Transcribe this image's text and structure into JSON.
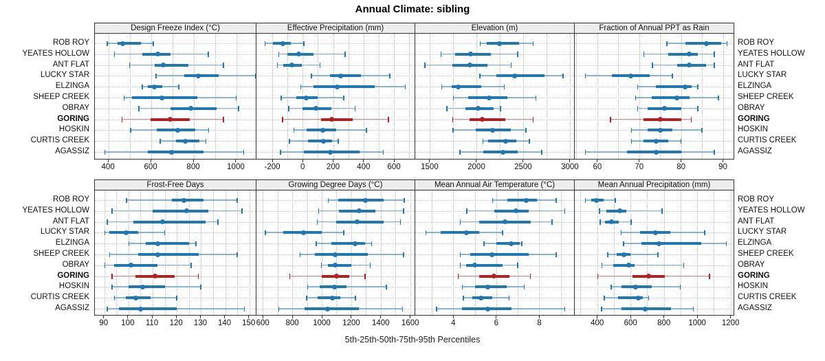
{
  "chart_data": {
    "type": "dotplot-percentile-trellis",
    "title": "Annual Climate: sibling",
    "xlabel": "5th-25th-50th-75th-95th Percentiles",
    "percentile_labels": [
      "5th",
      "25th",
      "50th",
      "75th",
      "95th"
    ],
    "legend_position": "none",
    "grid": "dotted",
    "sites_top_to_bottom": [
      "ROB ROY",
      "YEATES HOLLOW",
      "ANT FLAT",
      "LUCKY STAR",
      "ELZINGA",
      "SHEEP CREEK",
      "OBRAY",
      "GORING",
      "HOSKIN",
      "CURTIS CREEK",
      "AGASSIZ"
    ],
    "highlight_site": "GORING",
    "colors": {
      "series": "#1f77b4",
      "highlight": "#b22222",
      "strip_bg": "#ededed",
      "gridline": "#c0c0c0",
      "border": "#333333"
    },
    "panels": [
      {
        "label": "Design Freeze Index (°C)",
        "xlim": [
          335,
          1097
        ],
        "ticks": [
          400,
          600,
          800,
          1000
        ],
        "grid_step": 100,
        "values": {
          "ROB ROY": [
            390,
            440,
            465,
            550,
            610
          ],
          "YEATES HOLLOW": [
            425,
            558,
            630,
            690,
            868
          ],
          "ANT FLAT": [
            495,
            615,
            655,
            775,
            940
          ],
          "LUCKY STAR": [
            620,
            755,
            820,
            915,
            1090
          ],
          "ELZINGA": [
            555,
            585,
            615,
            650,
            730
          ],
          "SHEEP CREEK": [
            470,
            510,
            650,
            815,
            1000
          ],
          "OBRAY": [
            540,
            690,
            785,
            905,
            1010
          ],
          "GORING": [
            460,
            595,
            690,
            780,
            940
          ],
          "HOSKIN": [
            500,
            625,
            725,
            805,
            870
          ],
          "CURTIS CREEK": [
            640,
            715,
            760,
            825,
            857
          ],
          "AGASSIZ": [
            380,
            585,
            695,
            845,
            1035
          ]
        }
      },
      {
        "label": "Effective Precipitation (mm)",
        "xlim": [
          -304,
          740
        ],
        "ticks": [
          -200,
          0,
          200,
          400,
          600
        ],
        "grid_step": 100,
        "values": {
          "ROB ROY": [
            -250,
            -195,
            -130,
            -80,
            10
          ],
          "YEATES HOLLOW": [
            -160,
            -100,
            -25,
            70,
            280
          ],
          "ANT FLAT": [
            -170,
            -130,
            -70,
            -5,
            115
          ],
          "LUCKY STAR": [
            55,
            180,
            250,
            385,
            575
          ],
          "ELZINGA": [
            -15,
            70,
            225,
            475,
            675
          ],
          "SHEEP CREEK": [
            -145,
            -40,
            25,
            100,
            270
          ],
          "OBRAY": [
            -95,
            0,
            85,
            190,
            345
          ],
          "GORING": [
            -135,
            120,
            190,
            330,
            565
          ],
          "HOSKIN": [
            -60,
            25,
            130,
            220,
            420
          ],
          "CURTIS CREEK": [
            -90,
            35,
            135,
            195,
            235
          ],
          "AGASSIZ": [
            -150,
            10,
            180,
            375,
            530
          ]
        }
      },
      {
        "label": "Elevation (m)",
        "xlim": [
          1346,
          3052
        ],
        "ticks": [
          1500,
          2000,
          2500,
          3000
        ],
        "grid_step": 250,
        "values": {
          "ROB ROY": [
            2035,
            2110,
            2245,
            2460,
            2610
          ],
          "YEATES HOLLOW": [
            1615,
            1770,
            1940,
            2155,
            2445
          ],
          "ANT FLAT": [
            1445,
            1740,
            1930,
            2120,
            2375
          ],
          "LUCKY STAR": [
            2030,
            2215,
            2405,
            2725,
            2930
          ],
          "ELZINGA": [
            1625,
            1735,
            1805,
            2050,
            2300
          ],
          "SHEEP CREEK": [
            1750,
            1915,
            2135,
            2335,
            2640
          ],
          "OBRAY": [
            1680,
            1880,
            2020,
            2185,
            2260
          ],
          "GORING": [
            1740,
            1930,
            2060,
            2310,
            2610
          ],
          "HOSKIN": [
            1745,
            1990,
            2170,
            2370,
            2530
          ],
          "CURTIS CREEK": [
            2065,
            2125,
            2310,
            2430,
            2570
          ],
          "AGASSIZ": [
            1820,
            2075,
            2285,
            2445,
            2700
          ]
        }
      },
      {
        "label": "Fraction of Annual PPT as Rain",
        "xlim": [
          54.6,
          92.7
        ],
        "ticks": [
          60,
          70,
          80,
          90
        ],
        "grid_step": 5,
        "values": {
          "ROB ROY": [
            76.5,
            81,
            86,
            89.5,
            91
          ],
          "YEATES HOLLOW": [
            71,
            77,
            82,
            84,
            88
          ],
          "ANT FLAT": [
            73,
            79,
            82,
            86,
            88
          ],
          "LUCKY STAR": [
            57,
            63.5,
            68,
            72.5,
            78
          ],
          "ELZINGA": [
            69.5,
            74,
            81,
            82.5,
            84
          ],
          "SHEEP CREEK": [
            69,
            73,
            79,
            82,
            89
          ],
          "OBRAY": [
            69.5,
            72,
            76,
            80,
            84
          ],
          "GORING": [
            63,
            71,
            75,
            80,
            82.5
          ],
          "HOSKIN": [
            68,
            72,
            75,
            78,
            85
          ],
          "CURTIS CREEK": [
            68,
            71,
            74,
            77,
            80
          ],
          "AGASSIZ": [
            57,
            67,
            74,
            80,
            88
          ]
        }
      },
      {
        "label": "Frost-Free Days",
        "xlim": [
          86.1,
          153.2
        ],
        "ticks": [
          90,
          100,
          110,
          120,
          130,
          140,
          150
        ],
        "grid_step": 5,
        "values": {
          "ROB ROY": [
            99,
            118,
            123,
            131,
            145
          ],
          "YEATES HOLLOW": [
            93,
            110,
            124,
            133,
            147
          ],
          "ANT FLAT": [
            91,
            102,
            114,
            132,
            137
          ],
          "LUCKY STAR": [
            90,
            92,
            99,
            104,
            115
          ],
          "ELZINGA": [
            100,
            107,
            112,
            125,
            128
          ],
          "SHEEP CREEK": [
            92,
            104,
            112,
            129,
            145
          ],
          "OBRAY": [
            90,
            94,
            101,
            112,
            126
          ],
          "GORING": [
            93,
            103,
            111,
            119,
            129
          ],
          "HOSKIN": [
            93,
            100,
            106,
            115,
            130
          ],
          "CURTIS CREEK": [
            94,
            99,
            103,
            109,
            120
          ],
          "AGASSIZ": [
            91,
            96,
            105,
            120,
            148
          ]
        }
      },
      {
        "label": "Growing Degree Days (°C)",
        "xlim": [
          557,
          1634
        ],
        "ticks": [
          600,
          800,
          1000,
          1200,
          1400,
          1600
        ],
        "grid_step": 100,
        "values": {
          "ROB ROY": [
            1040,
            1110,
            1295,
            1420,
            1560
          ],
          "YEATES HOLLOW": [
            975,
            1115,
            1255,
            1365,
            1555
          ],
          "ANT FLAT": [
            965,
            1100,
            1240,
            1420,
            1535
          ],
          "LUCKY STAR": [
            615,
            740,
            875,
            1000,
            1150
          ],
          "ELZINGA": [
            960,
            1065,
            1225,
            1295,
            1340
          ],
          "SHEEP CREEK": [
            850,
            955,
            1090,
            1310,
            1555
          ],
          "OBRAY": [
            995,
            1040,
            1090,
            1200,
            1330
          ],
          "GORING": [
            780,
            1000,
            1100,
            1185,
            1295
          ],
          "HOSKIN": [
            900,
            985,
            1085,
            1170,
            1440
          ],
          "CURTIS CREEK": [
            895,
            970,
            1070,
            1125,
            1230
          ],
          "AGASSIZ": [
            705,
            885,
            1040,
            1250,
            1550
          ]
        }
      },
      {
        "label": "Mean Annual Air Temperature (°C)",
        "xlim": [
          2.23,
          9.65
        ],
        "ticks": [
          4,
          6,
          8
        ],
        "grid_step": 1,
        "values": {
          "ROB ROY": [
            5.8,
            6.5,
            7.4,
            7.9,
            8.8
          ],
          "YEATES HOLLOW": [
            4.6,
            5.9,
            6.9,
            7.5,
            9.2
          ],
          "ANT FLAT": [
            4.3,
            5.2,
            6.4,
            7.6,
            8.6
          ],
          "LUCKY STAR": [
            2.7,
            3.4,
            4.6,
            5.2,
            6.3
          ],
          "ELZINGA": [
            5.4,
            6.0,
            6.7,
            7.1,
            7.2
          ],
          "SHEEP CREEK": [
            4.3,
            4.8,
            5.8,
            7.5,
            8.8
          ],
          "OBRAY": [
            4.3,
            4.6,
            5.0,
            6.3,
            7.0
          ],
          "GORING": [
            4.2,
            5.2,
            5.9,
            6.6,
            7.6
          ],
          "HOSKIN": [
            4.4,
            5.0,
            5.6,
            6.5,
            7.3
          ],
          "CURTIS CREEK": [
            4.45,
            4.9,
            5.3,
            5.8,
            6.6
          ],
          "AGASSIZ": [
            3.2,
            4.4,
            5.6,
            6.7,
            9.2
          ]
        }
      },
      {
        "label": "Mean Annual Precipitation (mm)",
        "xlim": [
          265,
          1222
        ],
        "ticks": [
          400,
          600,
          800,
          1000,
          1200
        ],
        "grid_step": 100,
        "values": {
          "ROB ROY": [
            325,
            365,
            395,
            440,
            510
          ],
          "YEATES HOLLOW": [
            410,
            455,
            535,
            575,
            790
          ],
          "ANT FLAT": [
            415,
            447,
            485,
            530,
            605
          ],
          "LUCKY STAR": [
            540,
            655,
            750,
            840,
            1045
          ],
          "ELZINGA": [
            555,
            665,
            770,
            1025,
            1175
          ],
          "SHEEP CREEK": [
            460,
            515,
            560,
            600,
            765
          ],
          "OBRAY": [
            425,
            495,
            590,
            625,
            920
          ],
          "GORING": [
            400,
            610,
            710,
            805,
            1075
          ],
          "HOSKIN": [
            480,
            547,
            630,
            725,
            900
          ],
          "CURTIS CREEK": [
            440,
            525,
            645,
            675,
            710
          ],
          "AGASSIZ": [
            423,
            547,
            687,
            842,
            977
          ]
        }
      }
    ]
  }
}
